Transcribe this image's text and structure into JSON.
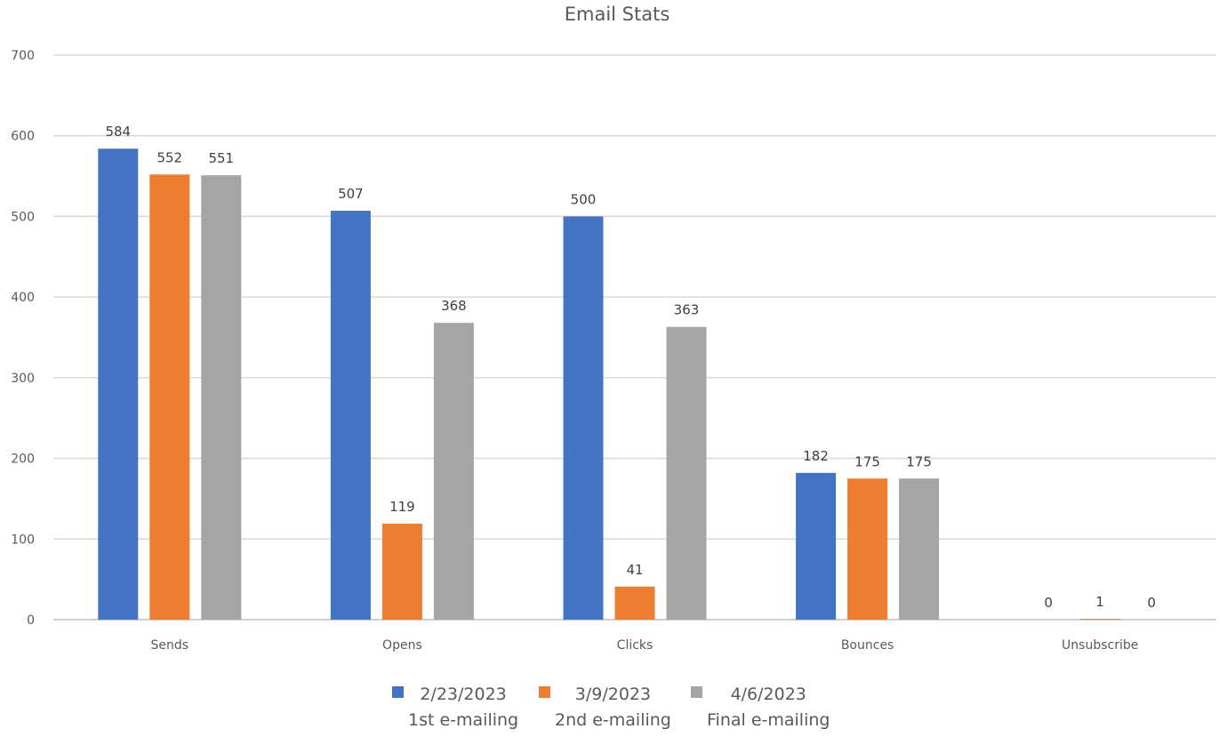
{
  "chart_data": {
    "type": "bar",
    "title": "Email Stats",
    "categories": [
      "Sends",
      "Opens",
      "Clicks",
      "Bounces",
      "Unsubscribe"
    ],
    "series": [
      {
        "name": "2/23/2023",
        "sublabel": "1st e-mailing",
        "color": "#4472c4",
        "values": [
          584,
          507,
          500,
          182,
          0
        ]
      },
      {
        "name": "3/9/2023",
        "sublabel": "2nd e-mailing",
        "color": "#ed7d31",
        "values": [
          552,
          119,
          41,
          175,
          1
        ]
      },
      {
        "name": "4/6/2023",
        "sublabel": "Final e-mailing",
        "color": "#a5a5a5",
        "values": [
          551,
          368,
          363,
          175,
          0
        ]
      }
    ],
    "yticks": [
      "0",
      "100",
      "200",
      "300",
      "400",
      "500",
      "600",
      "700"
    ],
    "ylim": [
      0,
      700
    ],
    "grid": true,
    "legend_position": "bottom"
  }
}
